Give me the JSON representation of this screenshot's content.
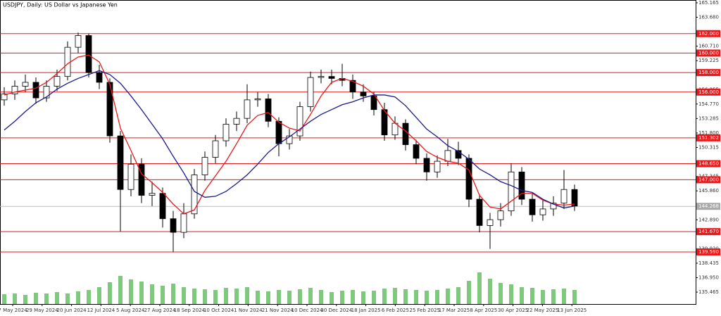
{
  "chart_data": {
    "type": "candlestick",
    "title": "USDJPY, Daily:  US Dollar vs Japanese Yen",
    "ylim": [
      134.24,
      165.45
    ],
    "yticks": [
      165.165,
      {
        "value": 163.68,
        "label": "163.680"
      },
      {
        "value": 160.71,
        "label": "160.710"
      },
      159.225,
      156.255,
      {
        "value": 154.77,
        "label": "154.770"
      },
      153.285,
      {
        "value": 151.8,
        "label": "151.800"
      },
      150.315,
      147.345,
      {
        "value": 145.86,
        "label": "145.860"
      },
      {
        "value": 142.89,
        "label": "142.890"
      },
      {
        "value": 139.92,
        "label": "139.920"
      },
      138.435,
      {
        "value": 136.95,
        "label": "136.950"
      },
      135.465
    ],
    "levels": [
      {
        "value": 162,
        "label": "162.000"
      },
      {
        "value": 160,
        "label": "160.000"
      },
      {
        "value": 158,
        "label": "158.000"
      },
      {
        "value": 156,
        "label": "156.000"
      },
      {
        "value": 151.302,
        "label": "151.302"
      },
      {
        "value": 148.65,
        "label": "148.650"
      },
      {
        "value": 147,
        "label": "147.000"
      },
      {
        "value": 141.67,
        "label": "141.670"
      },
      {
        "value": 139.59,
        "label": "139.590"
      }
    ],
    "level_color": "#e8191b",
    "current_price": {
      "value": 144.268,
      "label": "144.268"
    },
    "dates": [
      "7 May 2024",
      "29 May 2024",
      "20 Jun 2024",
      "12 Jul 2024",
      "5 Aug 2024",
      "27 Aug 2024",
      "18 Sep 2024",
      "10 Oct 2024",
      "1 Nov 2024",
      "21 Nov 2024",
      "10 Dec 2024",
      "30 Dec 2024",
      "18 Jan 2025",
      "6 Feb 2025",
      "25 Feb 2025",
      "17 Mar 2025",
      "8 Apr 2025",
      "30 Apr 2025",
      "22 May 2025",
      "13 Jun 2025"
    ],
    "open": [
      155.2,
      155.8,
      156.6,
      157.0,
      155.4,
      156.6,
      157.6,
      160.6,
      161.8,
      158.0,
      157.0,
      151.5,
      146.0,
      148.6,
      145.4,
      145.6,
      143.0,
      141.6,
      143.5,
      147.5,
      149.3,
      151.0,
      152.7,
      153.3,
      155.2,
      155.3,
      153.0,
      150.7,
      151.5,
      154.5,
      157.5,
      157.6,
      157.4,
      157.2,
      156.0,
      155.6,
      154.2,
      151.6,
      152.8,
      150.6,
      149.2,
      147.8,
      148.9,
      150.0,
      149.2,
      145.0,
      142.3,
      142.9,
      143.8,
      147.8,
      145.0,
      143.4,
      144.0,
      144.6,
      146.0
    ],
    "high": [
      156.5,
      157.2,
      157.8,
      157.5,
      157.2,
      158.3,
      161.2,
      162.1,
      162.0,
      158.8,
      157.4,
      152.0,
      149.6,
      149.2,
      146.8,
      146.2,
      143.8,
      144.6,
      148.1,
      149.9,
      151.6,
      153.3,
      154.0,
      156.8,
      156.0,
      155.8,
      153.4,
      152.2,
      155.0,
      158.1,
      158.3,
      158.3,
      158.9,
      157.8,
      156.8,
      156.0,
      154.9,
      153.5,
      153.2,
      151.1,
      149.7,
      149.5,
      151.2,
      150.9,
      149.6,
      145.5,
      143.6,
      144.6,
      148.7,
      148.3,
      145.6,
      144.9,
      145.3,
      148.0,
      146.5
    ],
    "low": [
      154.6,
      155.2,
      156.0,
      154.8,
      155.0,
      156.1,
      157.2,
      160.0,
      157.5,
      156.3,
      150.8,
      141.7,
      145.3,
      144.6,
      144.3,
      142.1,
      139.6,
      141.0,
      143.0,
      146.9,
      148.7,
      150.4,
      152.0,
      152.8,
      154.5,
      152.4,
      149.4,
      150.1,
      151.0,
      154.0,
      156.9,
      156.8,
      156.6,
      155.3,
      155.0,
      153.6,
      151.0,
      151.1,
      150.0,
      148.6,
      146.9,
      147.2,
      148.4,
      148.5,
      144.2,
      141.6,
      139.9,
      142.2,
      143.3,
      144.4,
      142.7,
      142.8,
      143.3,
      144.0,
      143.8
    ],
    "close": [
      155.8,
      156.6,
      157.0,
      155.4,
      156.6,
      157.6,
      160.6,
      161.8,
      158.0,
      157.0,
      151.5,
      146.0,
      148.6,
      145.4,
      145.6,
      143.0,
      141.6,
      143.5,
      147.5,
      149.3,
      151.0,
      152.7,
      153.3,
      155.2,
      155.3,
      153.0,
      150.7,
      151.5,
      154.5,
      157.5,
      157.6,
      157.4,
      157.2,
      156.0,
      155.6,
      154.2,
      151.6,
      152.8,
      150.6,
      149.2,
      147.8,
      148.9,
      150.0,
      149.2,
      145.0,
      142.3,
      142.9,
      143.8,
      147.8,
      145.0,
      143.4,
      144.0,
      144.6,
      146.0,
      144.3
    ],
    "lines": [
      {
        "color": "#e8191b",
        "values": [
          155.7,
          156.0,
          156.2,
          156.4,
          157.0,
          157.9,
          158.9,
          159.6,
          159.8,
          159.1,
          156.8,
          152.3,
          150.0,
          147.6,
          146.7,
          145.7,
          144.5,
          143.5,
          143.9,
          145.9,
          147.4,
          148.9,
          150.7,
          152.6,
          153.6,
          153.9,
          152.9,
          152.3,
          152.0,
          153.7,
          155.6,
          157.0,
          157.4,
          157.1,
          156.6,
          155.8,
          154.1,
          152.8,
          152.0,
          151.0,
          149.9,
          149.3,
          148.9,
          148.7,
          148.0,
          145.4,
          144.2,
          144.0,
          144.8,
          145.6,
          145.6,
          144.9,
          144.5,
          144.4,
          144.5
        ]
      },
      {
        "color": "#1a1a8c",
        "values": [
          152.1,
          153.0,
          154.0,
          154.9,
          155.5,
          156.3,
          156.9,
          157.4,
          157.8,
          158.2,
          157.8,
          156.9,
          155.6,
          154.2,
          152.7,
          151.2,
          149.4,
          147.7,
          145.8,
          145.2,
          145.3,
          145.8,
          146.6,
          147.5,
          148.6,
          149.8,
          150.7,
          151.4,
          152.2,
          153.0,
          153.7,
          154.2,
          154.7,
          155.0,
          155.4,
          155.7,
          155.7,
          155.5,
          154.6,
          153.4,
          152.2,
          151.4,
          150.5,
          149.9,
          149.1,
          148.1,
          147.5,
          146.8,
          146.4,
          145.9,
          145.7,
          145.0,
          144.5,
          144.1,
          144.3
        ]
      }
    ],
    "volume": [
      28,
      30,
      26,
      32,
      30,
      34,
      30,
      36,
      40,
      48,
      62,
      80,
      70,
      64,
      56,
      52,
      58,
      48,
      44,
      42,
      40,
      46,
      44,
      48,
      38,
      36,
      40,
      38,
      42,
      46,
      40,
      34,
      38,
      40,
      36,
      38,
      44,
      46,
      42,
      40,
      38,
      40,
      44,
      48,
      66,
      90,
      72,
      60,
      56,
      48,
      46,
      40,
      42,
      44,
      40
    ],
    "volume_lim": [
      0,
      100
    ],
    "volume_color": "#7fc97f"
  }
}
